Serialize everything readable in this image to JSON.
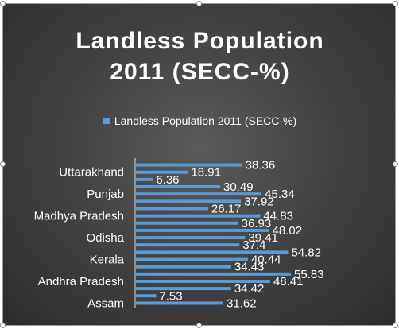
{
  "chart_data": {
    "type": "bar",
    "orientation": "horizontal",
    "title_line1": "Landless Population",
    "title_line2": "2011 (SECC-%)",
    "legend_position": "top",
    "series": [
      {
        "name": "Landless Population 2011 (SECC-%)",
        "color": "#5b9bd5",
        "values": [
          38.36,
          18.91,
          6.36,
          30.49,
          45.34,
          37.92,
          26.17,
          44.83,
          36.93,
          48.02,
          39.41,
          37.4,
          54.82,
          40.44,
          34.43,
          55.83,
          48.41,
          34.42,
          7.53,
          31.62
        ]
      }
    ],
    "tick_labels": [
      "Uttarakhand",
      "Punjab",
      "Madhya Pradesh",
      "Odisha",
      "Kerala",
      "Andhra Pradesh",
      "Assam"
    ],
    "value_labels": [
      "38.36",
      "18.91",
      "6.36",
      "30.49",
      "45.34",
      "37.92",
      "26.17",
      "44.83",
      "36.93",
      "48.02",
      "39.41",
      "37.4",
      "54.82",
      "40.44",
      "34.43",
      "55.83",
      "48.41",
      "34.42",
      "7.53",
      "31.62"
    ],
    "xlim": [
      0,
      60
    ],
    "grid": false
  }
}
